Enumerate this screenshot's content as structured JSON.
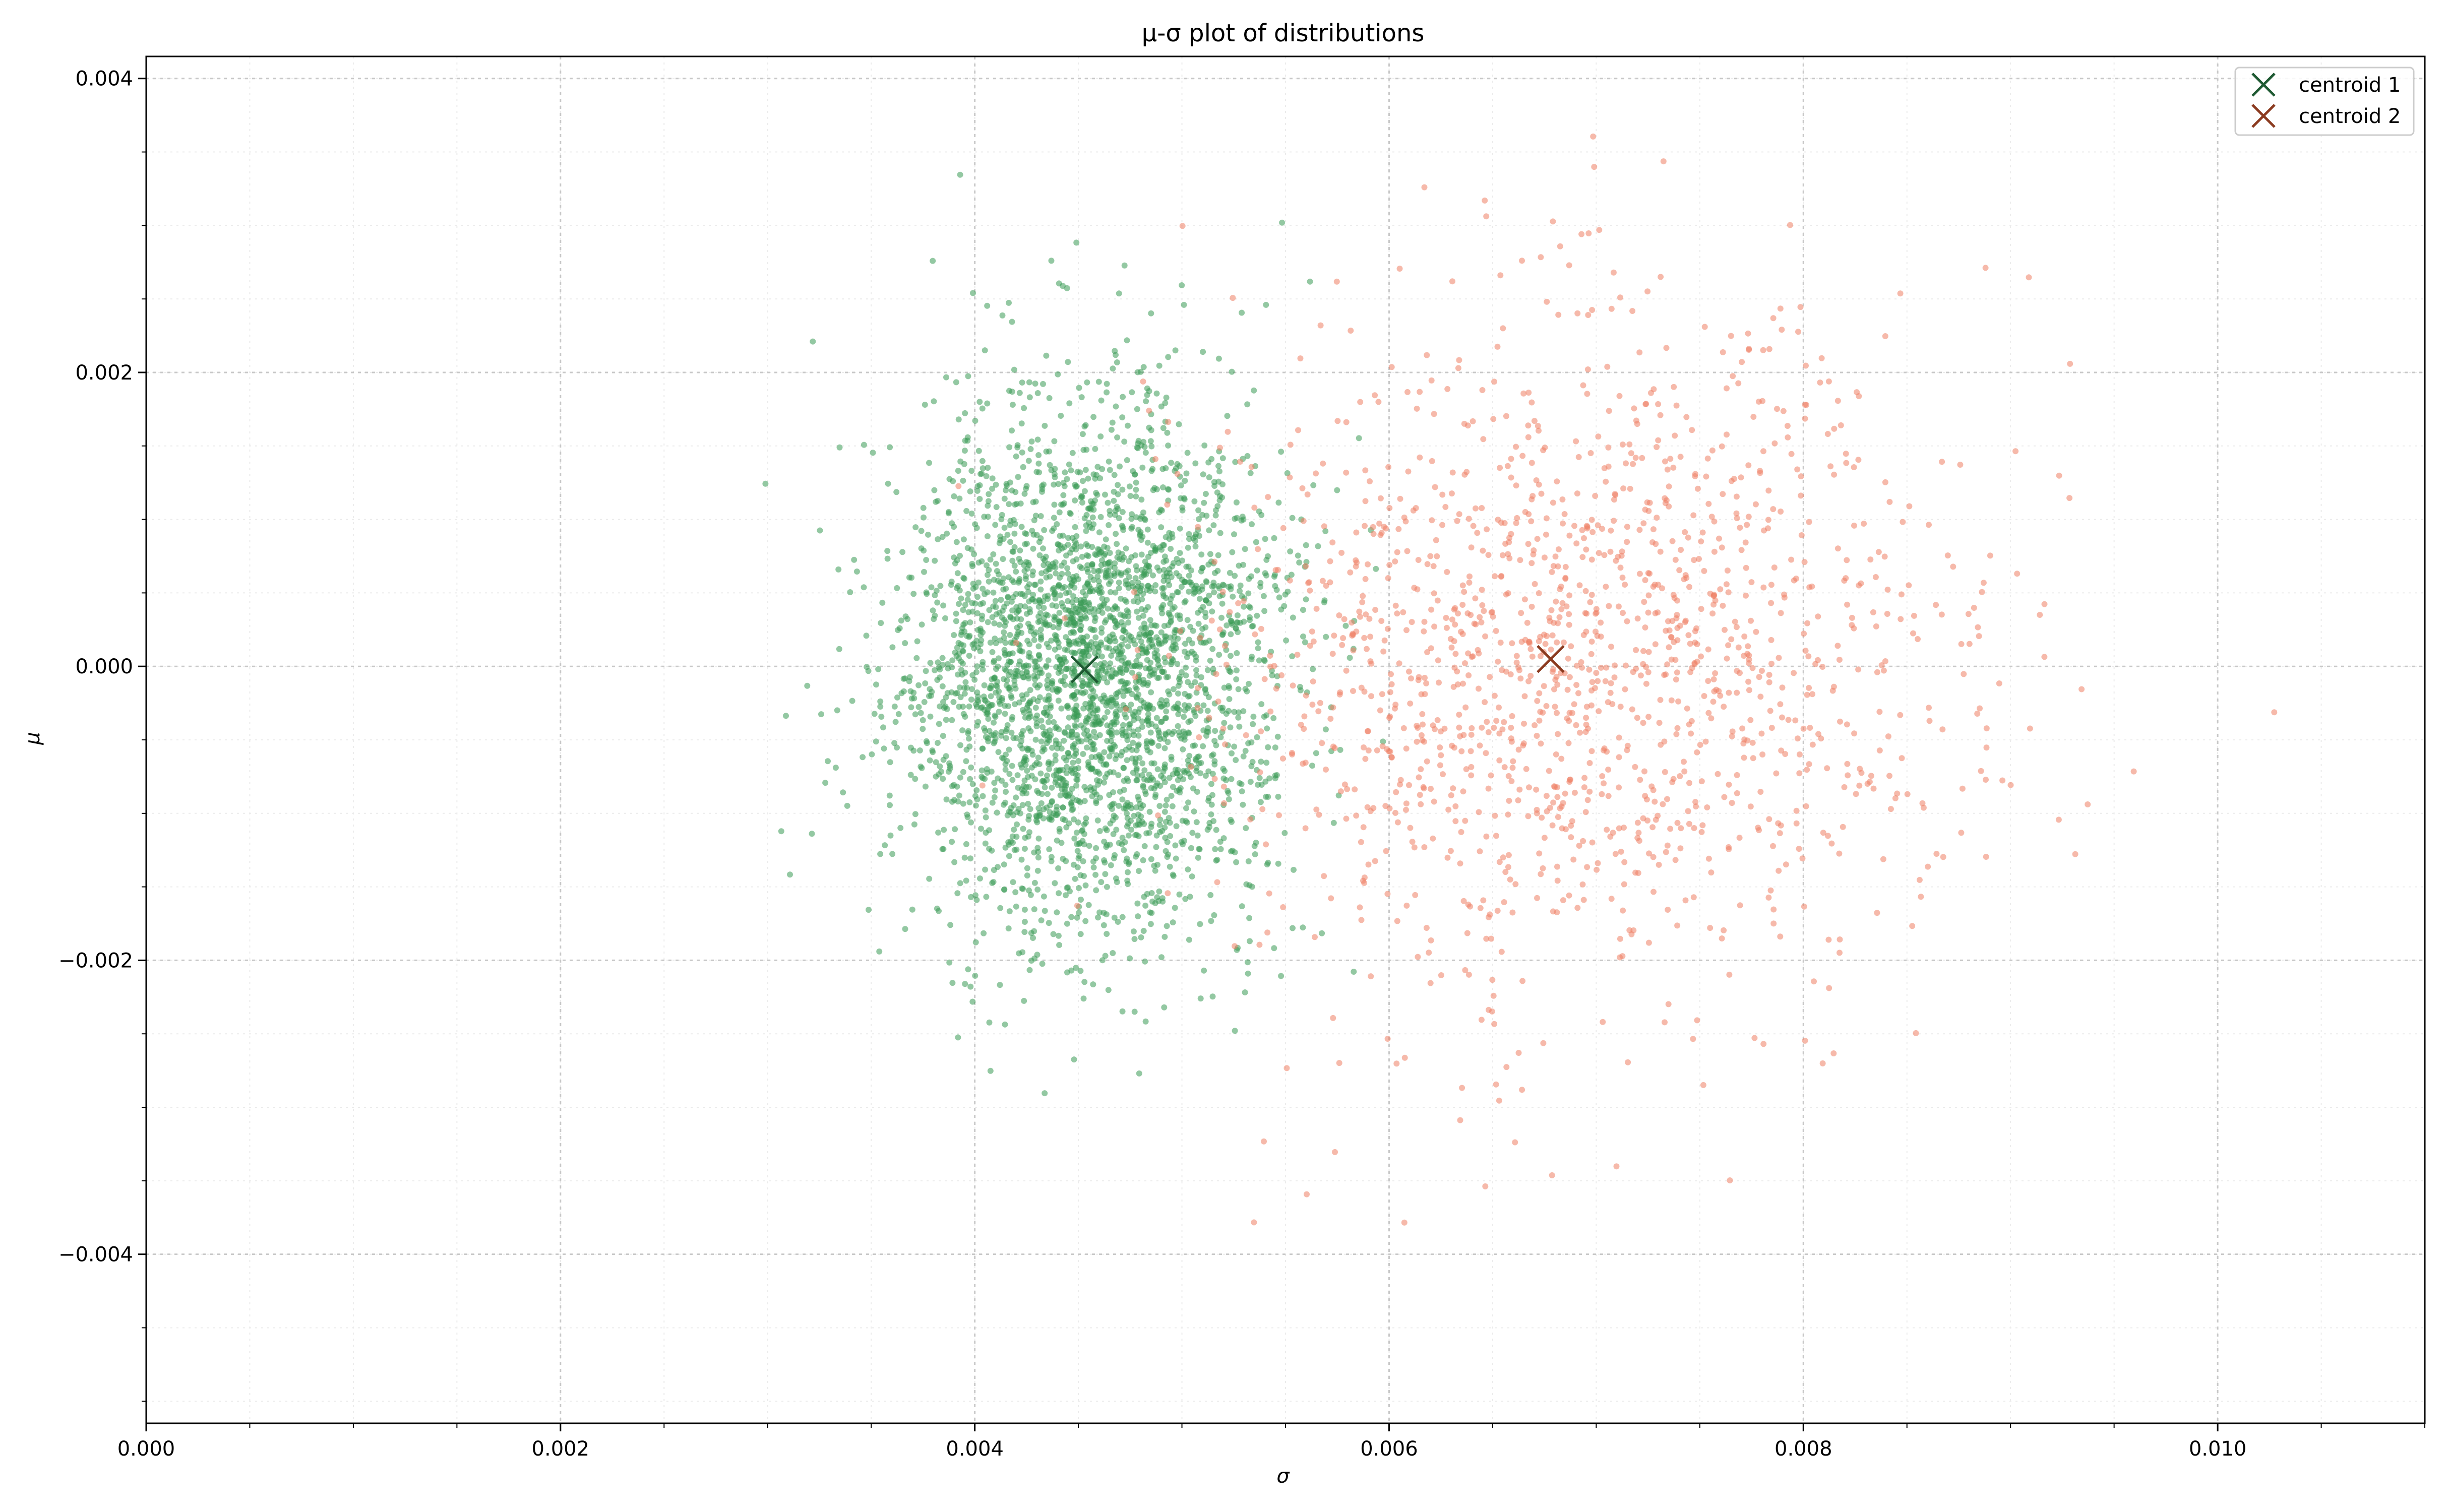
{
  "chart_data": {
    "type": "scatter",
    "title": "μ-σ plot of distributions",
    "xlabel": "σ",
    "ylabel": "μ",
    "xlim": [
      0.0,
      0.011
    ],
    "ylim": [
      -0.00515,
      0.00415
    ],
    "x_ticks": [
      0.0,
      0.002,
      0.004,
      0.006,
      0.008,
      0.01
    ],
    "x_tick_labels": [
      "0.000",
      "0.002",
      "0.004",
      "0.006",
      "0.008",
      "0.010"
    ],
    "y_ticks": [
      -0.004,
      -0.002,
      0.0,
      0.002,
      0.004
    ],
    "y_tick_labels": [
      "−0.004",
      "−0.002",
      "0.000",
      "0.002",
      "0.004"
    ],
    "grid": true,
    "minor_grid": true,
    "legend_position": "top-right",
    "clusters": [
      {
        "color": "#3a9a55",
        "count": 3200,
        "sigma_mean": 0.00455,
        "sigma_sd": 0.00045,
        "mu_mean": -2e-05,
        "mu_sd": 0.00088,
        "seed": 11
      },
      {
        "color": "#ee7f64",
        "count": 1500,
        "sigma_mean": 0.00695,
        "sigma_sd": 0.0009,
        "mu_mean": 5e-05,
        "mu_sd": 0.00115,
        "seed": 29
      }
    ],
    "centroids": [
      {
        "name": "centroid 1",
        "x": 0.00453,
        "y": -2e-05,
        "color": "#1f5a33"
      },
      {
        "name": "centroid 2",
        "x": 0.00678,
        "y": 5e-05,
        "color": "#8b3a1f"
      }
    ]
  }
}
